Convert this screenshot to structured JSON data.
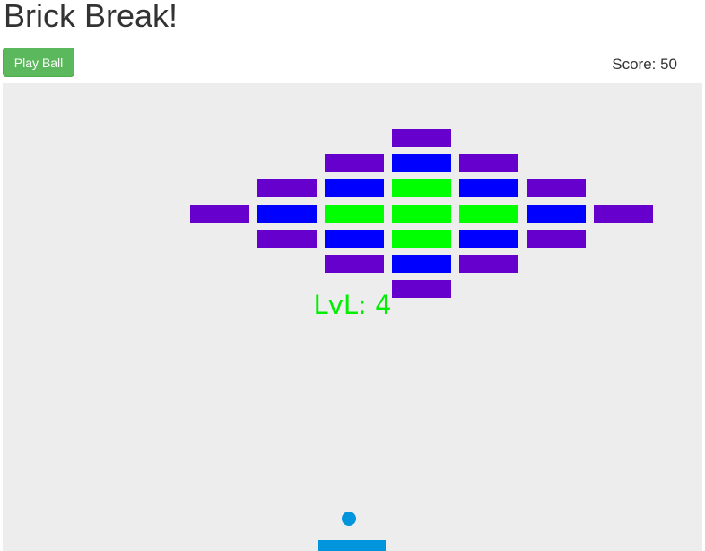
{
  "header": {
    "title": "Brick Break!",
    "play_label": "Play Ball",
    "score_text": "Score: 50"
  },
  "game": {
    "level_text": "LvL: 4",
    "colors": {
      "board_bg": "#ededed",
      "purple": "#6600cc",
      "blue": "#0000ff",
      "green": "#00ff00",
      "ball": "#0095dd",
      "paddle": "#0095dd",
      "level_text": "#00ee00",
      "play_button": "#5cb85c"
    },
    "brick_grid": [
      "....P....",
      "...PBP...",
      "..PBGBP..",
      ".PBGGGBP.",
      "..PBGBP..",
      "...PBP...",
      "....P...."
    ]
  }
}
